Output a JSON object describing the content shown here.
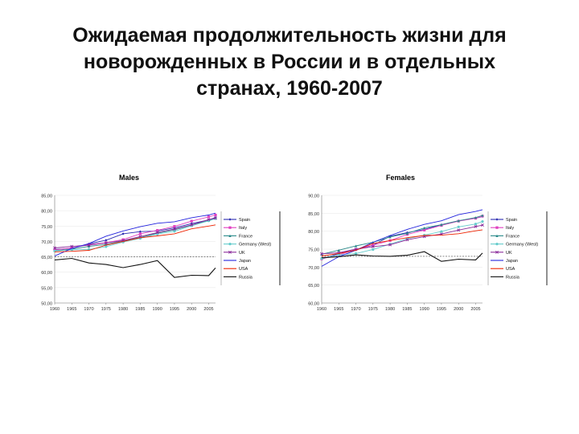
{
  "title": {
    "line1": "Ожидаемая продолжительность жизни для",
    "line2": "новорожденных в России и в отдельных",
    "line3": "странах, 1960-2007"
  },
  "colors": {
    "Spain": "#2b2bb0",
    "Italy": "#e040c0",
    "France": "#2a8a8a",
    "Germany (West)": "#66cccc",
    "UK": "#8a2a9a",
    "Japan": "#2222dd",
    "USA": "#ee2200",
    "Russia": "#111111"
  },
  "chart_data": [
    {
      "type": "line",
      "title": "Males",
      "ylim": [
        50,
        85
      ],
      "yticks": [
        "50,00",
        "55,00",
        "60,00",
        "65,00",
        "70,00",
        "75,00",
        "80,00",
        "85,00"
      ],
      "xlim": [
        1960,
        2007
      ],
      "xticks": [
        "1960",
        "1965",
        "1970",
        "1975",
        "1980",
        "1985",
        "1990",
        "1995",
        "2000",
        "2005"
      ],
      "reference_line": 65,
      "legend_position": "right",
      "x": [
        1960,
        1965,
        1970,
        1975,
        1980,
        1985,
        1990,
        1995,
        2000,
        2005,
        2007
      ],
      "series": [
        {
          "name": "Spain",
          "values": [
            67.4,
            67.8,
            69.2,
            70.4,
            72.5,
            73.2,
            73.4,
            74.4,
            75.8,
            77.0,
            77.8
          ]
        },
        {
          "name": "Italy",
          "values": [
            67.2,
            67.9,
            69.0,
            69.6,
            70.6,
            72.5,
            73.6,
            74.9,
            76.6,
            78.0,
            78.6
          ]
        },
        {
          "name": "France",
          "values": [
            67.0,
            67.5,
            68.4,
            69.0,
            70.2,
            71.3,
            72.7,
            73.8,
            75.3,
            76.8,
            77.5
          ]
        },
        {
          "name": "Germany (West)",
          "values": [
            66.9,
            67.3,
            67.4,
            68.3,
            69.8,
            71.0,
            72.4,
            73.3,
            75.1,
            76.7,
            77.4
          ]
        },
        {
          "name": "UK",
          "values": [
            67.9,
            68.4,
            68.8,
            69.5,
            70.3,
            71.6,
            72.9,
            74.0,
            75.4,
            77.1,
            77.6
          ]
        },
        {
          "name": "Japan",
          "values": [
            65.3,
            67.7,
            69.3,
            71.7,
            73.4,
            74.8,
            75.9,
            76.4,
            77.7,
            78.6,
            79.2
          ]
        },
        {
          "name": "USA",
          "values": [
            66.6,
            66.8,
            67.1,
            68.8,
            70.0,
            71.2,
            71.8,
            72.5,
            74.1,
            75.0,
            75.4
          ]
        },
        {
          "name": "Russia",
          "values": [
            64.0,
            64.5,
            63.0,
            62.5,
            61.5,
            62.5,
            63.8,
            58.3,
            59.0,
            58.9,
            61.4
          ]
        }
      ]
    },
    {
      "type": "line",
      "title": "Females",
      "ylim": [
        60,
        90
      ],
      "yticks": [
        "60,00",
        "65,00",
        "70,00",
        "75,00",
        "80,00",
        "85,00",
        "90,00"
      ],
      "xlim": [
        1960,
        2007
      ],
      "xticks": [
        "1960",
        "1965",
        "1970",
        "1975",
        "1980",
        "1985",
        "1990",
        "1995",
        "2000",
        "2005"
      ],
      "reference_line": 73,
      "legend_position": "right",
      "x": [
        1960,
        1965,
        1970,
        1975,
        1980,
        1985,
        1990,
        1995,
        2000,
        2005,
        2007
      ],
      "series": [
        {
          "name": "Spain",
          "values": [
            72.2,
            73.8,
            74.8,
            76.1,
            78.6,
            79.6,
            80.5,
            81.8,
            82.9,
            83.6,
            84.1
          ]
        },
        {
          "name": "Italy",
          "values": [
            72.3,
            73.4,
            74.9,
            76.1,
            77.4,
            79.1,
            80.3,
            81.6,
            82.8,
            83.6,
            84.2
          ]
        },
        {
          "name": "France",
          "values": [
            73.6,
            74.7,
            75.9,
            76.9,
            78.4,
            79.4,
            80.9,
            81.8,
            82.9,
            83.8,
            84.4
          ]
        },
        {
          "name": "Germany (West)",
          "values": [
            72.4,
            73.4,
            73.8,
            74.9,
            76.4,
            77.9,
            78.9,
            79.9,
            81.2,
            82.0,
            82.7
          ]
        },
        {
          "name": "UK",
          "values": [
            73.7,
            74.0,
            75.0,
            75.7,
            76.2,
            77.6,
            78.5,
            79.2,
            80.3,
            81.3,
            81.7
          ]
        },
        {
          "name": "Japan",
          "values": [
            70.2,
            72.9,
            74.7,
            76.9,
            78.8,
            80.5,
            81.9,
            82.9,
            84.6,
            85.5,
            86.0
          ]
        },
        {
          "name": "USA",
          "values": [
            73.1,
            73.8,
            74.7,
            76.6,
            77.4,
            78.2,
            78.8,
            78.9,
            79.3,
            80.1,
            80.4
          ]
        },
        {
          "name": "Russia",
          "values": [
            72.6,
            72.9,
            73.4,
            73.1,
            73.0,
            73.3,
            74.3,
            71.6,
            72.2,
            72.0,
            73.9
          ]
        }
      ]
    }
  ]
}
